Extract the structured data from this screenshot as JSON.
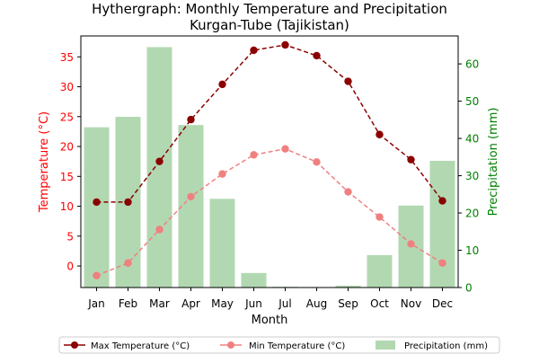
{
  "chart_data": {
    "type": "line",
    "title_line1": "Hythergraph: Monthly Temperature and Precipitation",
    "title_line2": "Kurgan-Tube (Tajikistan)",
    "xlabel": "Month",
    "ylabel_left": "Temperature (°C)",
    "ylabel_right": "Precipitation (mm)",
    "categories": [
      "Jan",
      "Feb",
      "Mar",
      "Apr",
      "May",
      "Jun",
      "Jul",
      "Aug",
      "Sep",
      "Oct",
      "Nov",
      "Dec"
    ],
    "y_left_lim": [
      -3.6,
      38.5
    ],
    "y_left_ticks": [
      0,
      5,
      10,
      15,
      20,
      25,
      30,
      35
    ],
    "y_right_lim": [
      0,
      67.5
    ],
    "y_right_ticks": [
      0,
      10,
      20,
      30,
      40,
      50,
      60
    ],
    "series": [
      {
        "name": "Max Temperature (°C)",
        "axis": "left",
        "kind": "line",
        "color": "#8b0000",
        "values": [
          10.7,
          10.7,
          17.5,
          24.5,
          30.4,
          36.1,
          37.0,
          35.2,
          30.9,
          22.0,
          17.8,
          10.9
        ]
      },
      {
        "name": "Min Temperature (°C)",
        "axis": "left",
        "kind": "line",
        "color": "#f08080",
        "values": [
          -1.6,
          0.5,
          6.1,
          11.6,
          15.4,
          18.6,
          19.6,
          17.4,
          12.4,
          8.2,
          3.7,
          0.5
        ]
      },
      {
        "name": "Precipitation (mm)",
        "axis": "right",
        "kind": "bar",
        "color": "#b2d8b2",
        "values": [
          43,
          45.8,
          64.5,
          43.6,
          23.8,
          3.9,
          0.2,
          0,
          0.5,
          8.7,
          22,
          34
        ]
      }
    ],
    "left_axis_color": "#ff0000",
    "right_axis_color": "#008000",
    "legend_position": "bottom-center"
  }
}
